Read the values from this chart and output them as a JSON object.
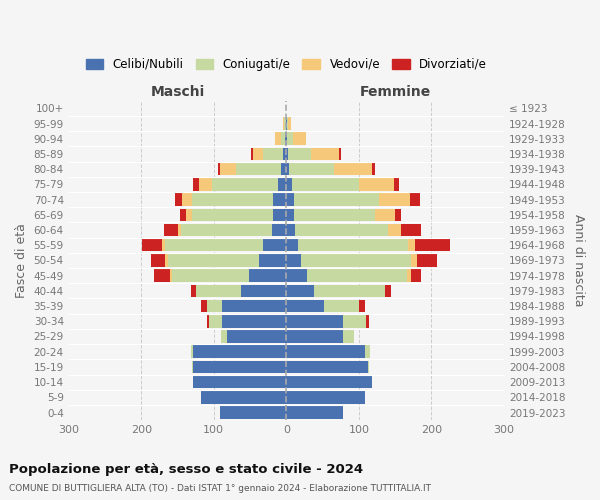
{
  "age_groups": [
    "0-4",
    "5-9",
    "10-14",
    "15-19",
    "20-24",
    "25-29",
    "30-34",
    "35-39",
    "40-44",
    "45-49",
    "50-54",
    "55-59",
    "60-64",
    "65-69",
    "70-74",
    "75-79",
    "80-84",
    "85-89",
    "90-94",
    "95-99",
    "100+"
  ],
  "birth_years": [
    "2019-2023",
    "2014-2018",
    "2009-2013",
    "2004-2008",
    "1999-2003",
    "1994-1998",
    "1989-1993",
    "1984-1988",
    "1979-1983",
    "1974-1978",
    "1969-1973",
    "1964-1968",
    "1959-1963",
    "1954-1958",
    "1949-1953",
    "1944-1948",
    "1939-1943",
    "1934-1938",
    "1929-1933",
    "1924-1928",
    "≤ 1923"
  ],
  "colors": {
    "celibe": "#4a72b0",
    "coniugato": "#c5d9a0",
    "vedovo": "#f5c87a",
    "divorziato": "#cc2222"
  },
  "maschi": {
    "celibe": [
      92,
      118,
      128,
      128,
      128,
      82,
      88,
      88,
      62,
      52,
      38,
      32,
      20,
      18,
      18,
      12,
      8,
      4,
      2,
      1,
      0
    ],
    "coniugato": [
      0,
      0,
      0,
      2,
      4,
      8,
      18,
      22,
      62,
      105,
      125,
      135,
      125,
      112,
      112,
      90,
      62,
      28,
      6,
      2,
      0
    ],
    "vedovo": [
      0,
      0,
      0,
      0,
      0,
      0,
      0,
      0,
      0,
      4,
      4,
      4,
      4,
      8,
      14,
      18,
      22,
      14,
      8,
      2,
      0
    ],
    "divorziato": [
      0,
      0,
      0,
      0,
      0,
      0,
      4,
      8,
      8,
      22,
      20,
      28,
      20,
      8,
      10,
      8,
      2,
      2,
      0,
      0,
      0
    ]
  },
  "femmine": {
    "nubile": [
      78,
      108,
      118,
      112,
      108,
      78,
      78,
      52,
      38,
      28,
      20,
      16,
      12,
      10,
      10,
      8,
      4,
      2,
      1,
      1,
      0
    ],
    "coniugata": [
      0,
      0,
      0,
      2,
      8,
      16,
      32,
      48,
      98,
      138,
      152,
      152,
      128,
      112,
      118,
      92,
      62,
      32,
      8,
      2,
      0
    ],
    "vedova": [
      0,
      0,
      0,
      0,
      0,
      0,
      0,
      0,
      0,
      6,
      8,
      10,
      18,
      28,
      42,
      48,
      52,
      38,
      18,
      4,
      0
    ],
    "divorziata": [
      0,
      0,
      0,
      0,
      0,
      0,
      4,
      8,
      8,
      14,
      28,
      48,
      28,
      8,
      14,
      8,
      4,
      4,
      0,
      0,
      0
    ]
  },
  "title": "Popolazione per età, sesso e stato civile - 2024",
  "subtitle": "COMUNE DI BUTTIGLIERA ALTA (TO) - Dati ISTAT 1° gennaio 2024 - Elaborazione TUTTITALIA.IT",
  "ylabel_left": "Fasce di età",
  "ylabel_right": "Anni di nascita",
  "xlabel_left": "Maschi",
  "xlabel_right": "Femmine",
  "xlim": 300,
  "legend_labels": [
    "Celibi/Nubili",
    "Coniugati/e",
    "Vedovi/e",
    "Divorziati/e"
  ],
  "background_color": "#f5f5f5"
}
